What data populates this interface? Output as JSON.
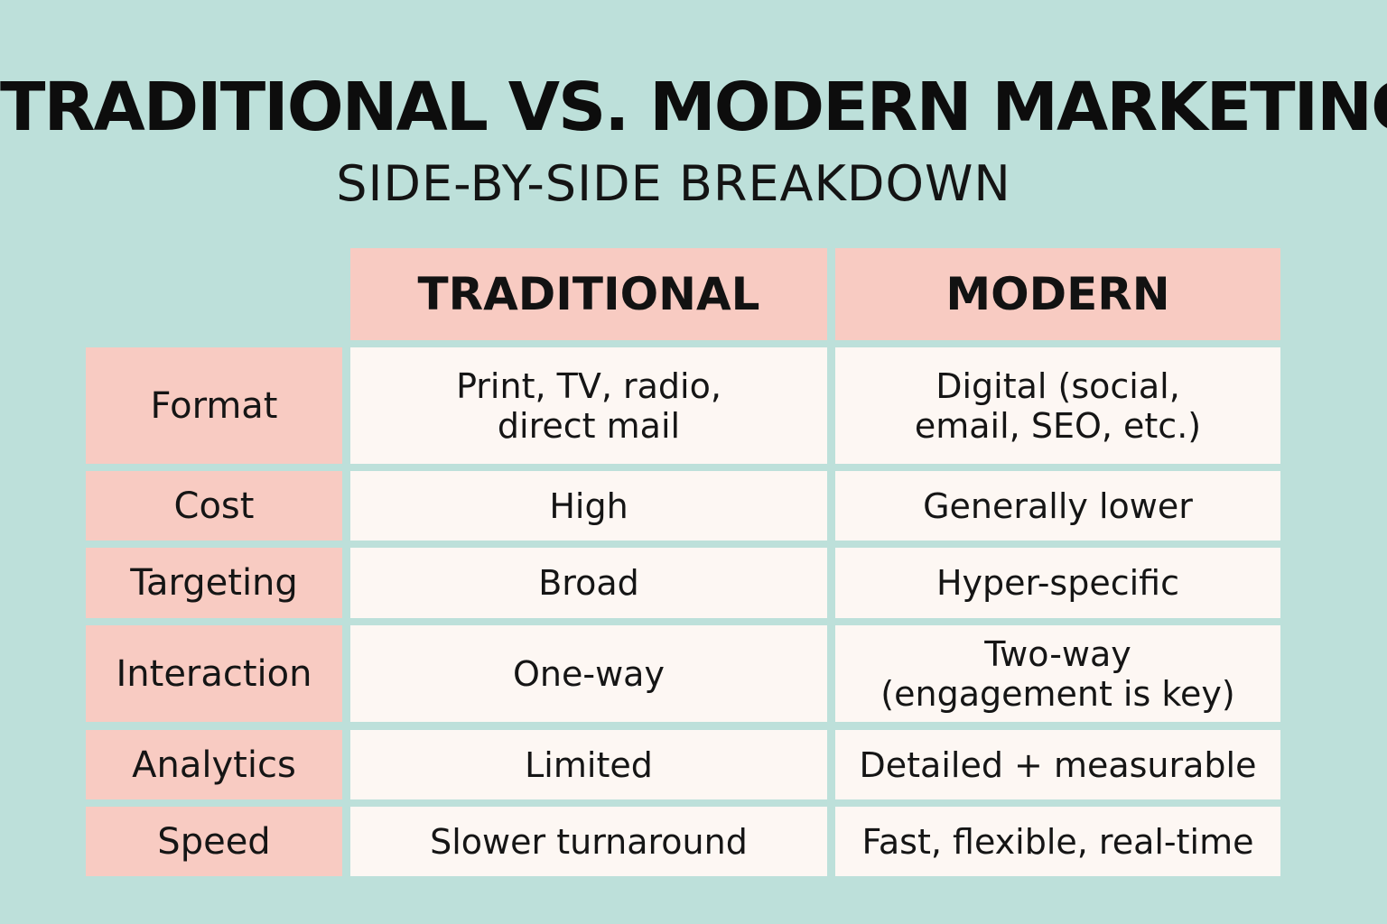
{
  "header": {
    "title": "TRADITIONAL VS. MODERN MARKETING",
    "subtitle": "SIDE-BY-SIDE BREAKDOWN"
  },
  "table": {
    "columns": [
      "TRADITIONAL",
      "MODERN"
    ],
    "rows": [
      {
        "label": "Format",
        "traditional": "Print, TV, radio,\ndirect mail",
        "modern": "Digital (social,\nemail, SEO, etc.)"
      },
      {
        "label": "Cost",
        "traditional": "High",
        "modern": "Generally lower"
      },
      {
        "label": "Targeting",
        "traditional": "Broad",
        "modern": "Hyper-specific"
      },
      {
        "label": "Interaction",
        "traditional": "One-way",
        "modern": "Two-way\n(engagement is key)"
      },
      {
        "label": "Analytics",
        "traditional": "Limited",
        "modern": "Detailed + measurable"
      },
      {
        "label": "Speed",
        "traditional": "Slower turnaround",
        "modern": "Fast, flexible, real-time"
      }
    ]
  },
  "colors": {
    "background": "#bde0da",
    "header_cells": "#f8cbc2",
    "label_cells": "#f8cbc2",
    "value_cells": "#fdf7f3",
    "text": "#111111"
  }
}
